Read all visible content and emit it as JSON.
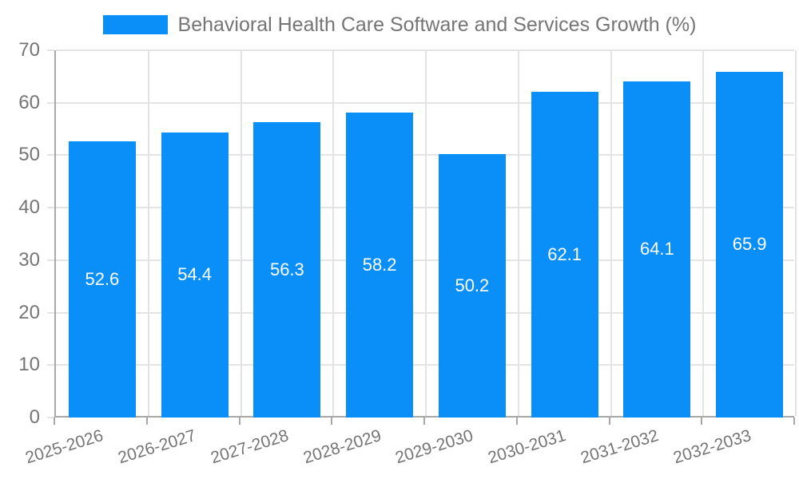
{
  "legend": {
    "label": "Behavioral Health Care Software and Services Growth (%)"
  },
  "colors": {
    "bar": "#0a8ff8",
    "grid": "#e4e4e4",
    "axis": "#a8a8a8",
    "text": "#757575",
    "bar_label": "#ffffff",
    "background": "#ffffff"
  },
  "chart_data": {
    "type": "bar",
    "title": "Behavioral Health Care Software and Services Growth (%)",
    "categories": [
      "2025-2026",
      "2026-2027",
      "2027-2028",
      "2028-2029",
      "2029-2030",
      "2030-2031",
      "2031-2032",
      "2032-2033"
    ],
    "values": [
      52.6,
      54.4,
      56.3,
      58.2,
      50.2,
      62.1,
      64.1,
      65.9
    ],
    "value_labels": [
      "52.6",
      "54.4",
      "56.3",
      "58.2",
      "50.2",
      "62.1",
      "64.1",
      "65.9"
    ],
    "ytick_labels": [
      "0",
      "10",
      "20",
      "30",
      "40",
      "50",
      "60",
      "70"
    ],
    "xlabel": "",
    "ylabel": "",
    "ylim": [
      0,
      70
    ],
    "ytick_step": 10,
    "grid": true,
    "legend_position": "top",
    "value_label_position": "inside-center",
    "bar_color": "#0a8ff8"
  }
}
